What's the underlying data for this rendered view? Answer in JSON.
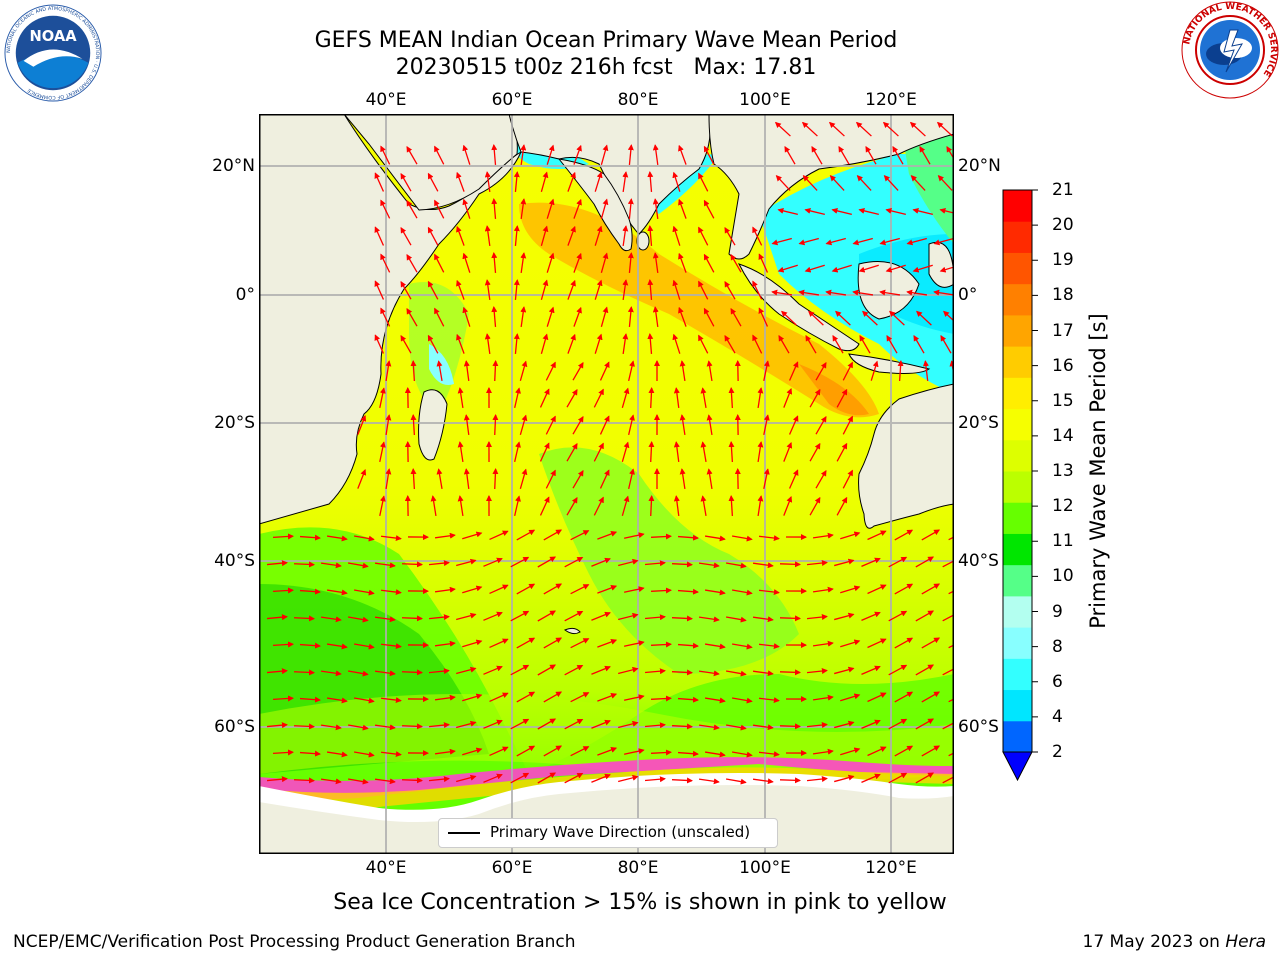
{
  "header": {
    "title_line1": "GEFS MEAN Indian Ocean Primary Wave Mean Period",
    "title_line2": "20230515 t00z 216h fcst   Max: 17.81"
  },
  "logos": {
    "left": "noaa-logo",
    "left_text": "NOAA",
    "left_ring_text": "NATIONAL OCEANIC AND ATMOSPHERIC ADMINISTRATION · U.S. DEPARTMENT OF COMMERCE",
    "right": "nws-logo",
    "right_ring_text": "NATIONAL WEATHER SERVICE"
  },
  "map": {
    "lon_labels": [
      "40°E",
      "60°E",
      "80°E",
      "100°E",
      "120°E"
    ],
    "lat_labels_left": [
      "20°N",
      "0°",
      "20°S",
      "40°S",
      "60°S"
    ],
    "lat_labels_right": [
      "20°N",
      "0°",
      "20°S",
      "40°S",
      "60°S"
    ],
    "extent": {
      "lon_min": 20,
      "lon_max": 130,
      "lat_min": -75,
      "lat_max": 28
    },
    "legend_label": "Primary Wave Direction (unscaled)",
    "land_color": "#efefdf",
    "ice_color": "#ffffff",
    "arrow_color": "#ff0000"
  },
  "colorbar": {
    "title": "Primary Wave Mean Period [s]",
    "tick_labels": [
      "21",
      "20",
      "19",
      "18",
      "17",
      "16",
      "15",
      "14",
      "13",
      "12",
      "11",
      "10",
      "9",
      "8",
      "6",
      "4",
      "2"
    ],
    "colors_bottom_to_top": [
      "#0066ff",
      "#00e6ff",
      "#33ffff",
      "#88ffff",
      "#b3fff0",
      "#55ff88",
      "#00e600",
      "#66ff00",
      "#bbff00",
      "#ddff00",
      "#f6ff00",
      "#ffee00",
      "#ffcc00",
      "#ffa500",
      "#ff8000",
      "#ff5500",
      "#ff2a00",
      "#ff0000"
    ],
    "under_color": "#0000ff"
  },
  "footer": {
    "note": "Sea Ice Concentration > 15% is shown in pink to yellow",
    "left": "NCEP/EMC/Verification Post Processing Product Generation Branch",
    "right_prefix": "17 May 2023 on ",
    "right_machine": "Hera"
  }
}
